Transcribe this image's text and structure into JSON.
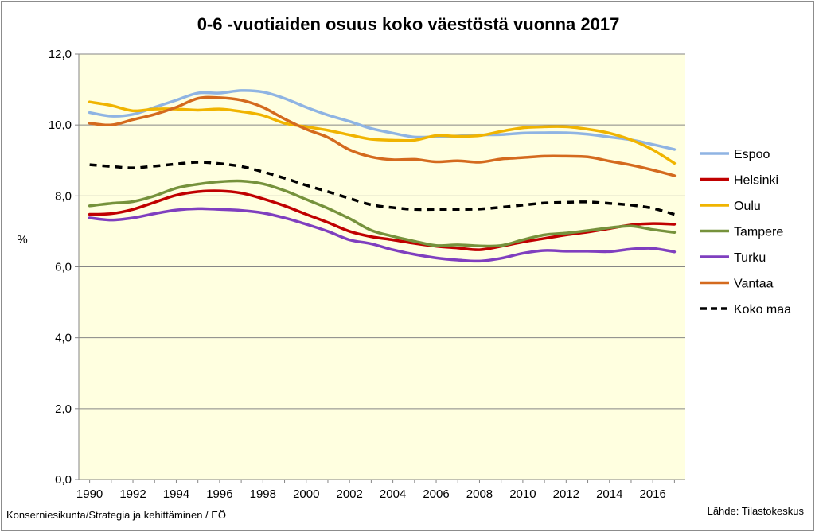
{
  "chart_data": {
    "type": "line",
    "title": "0-6 -vuotiaiden osuus koko väestöstä vuonna  2017",
    "ylabel": "%",
    "xlabel": "",
    "ylim": [
      0,
      12
    ],
    "y_ticks": [
      "0,0",
      "2,0",
      "4,0",
      "6,0",
      "8,0",
      "10,0",
      "12,0"
    ],
    "x": [
      1990,
      1991,
      1992,
      1993,
      1994,
      1995,
      1996,
      1997,
      1998,
      1999,
      2000,
      2001,
      2002,
      2003,
      2004,
      2005,
      2006,
      2007,
      2008,
      2009,
      2010,
      2011,
      2012,
      2013,
      2014,
      2015,
      2016,
      2017
    ],
    "x_tick_labels": [
      "1990",
      "1992",
      "1994",
      "1996",
      "1998",
      "2000",
      "2002",
      "2004",
      "2006",
      "2008",
      "2010",
      "2012",
      "2014",
      "2016"
    ],
    "plot_background": "#ffffe0",
    "grid": "horizontal",
    "legend_position": "right",
    "series": [
      {
        "name": "Espoo",
        "color": "#8fb4e3",
        "dash": "solid",
        "values": [
          10.35,
          10.25,
          10.3,
          10.5,
          10.7,
          10.9,
          10.9,
          10.97,
          10.93,
          10.75,
          10.5,
          10.28,
          10.1,
          9.9,
          9.77,
          9.66,
          9.67,
          9.69,
          9.72,
          9.73,
          9.77,
          9.78,
          9.78,
          9.74,
          9.66,
          9.58,
          9.45,
          9.31
        ]
      },
      {
        "name": "Helsinki",
        "color": "#c00000",
        "dash": "solid",
        "values": [
          7.48,
          7.5,
          7.62,
          7.82,
          8.02,
          8.12,
          8.14,
          8.08,
          7.92,
          7.72,
          7.48,
          7.25,
          7.0,
          6.85,
          6.76,
          6.66,
          6.58,
          6.53,
          6.48,
          6.58,
          6.7,
          6.8,
          6.9,
          6.98,
          7.08,
          7.18,
          7.22,
          7.2
        ]
      },
      {
        "name": "Oulu",
        "color": "#f0b400",
        "dash": "solid",
        "values": [
          10.65,
          10.55,
          10.4,
          10.45,
          10.45,
          10.42,
          10.45,
          10.38,
          10.27,
          10.05,
          9.95,
          9.85,
          9.72,
          9.6,
          9.57,
          9.57,
          9.7,
          9.68,
          9.7,
          9.82,
          9.92,
          9.95,
          9.95,
          9.88,
          9.77,
          9.58,
          9.3,
          8.92
        ]
      },
      {
        "name": "Tampere",
        "color": "#76923c",
        "dash": "solid",
        "values": [
          7.72,
          7.79,
          7.84,
          8.0,
          8.22,
          8.33,
          8.4,
          8.42,
          8.34,
          8.15,
          7.9,
          7.65,
          7.36,
          7.03,
          6.86,
          6.72,
          6.6,
          6.62,
          6.59,
          6.6,
          6.76,
          6.9,
          6.95,
          7.02,
          7.1,
          7.15,
          7.05,
          6.97
        ]
      },
      {
        "name": "Turku",
        "color": "#7f3fbf",
        "dash": "solid",
        "values": [
          7.38,
          7.32,
          7.38,
          7.5,
          7.6,
          7.64,
          7.62,
          7.59,
          7.52,
          7.38,
          7.2,
          7.0,
          6.76,
          6.65,
          6.48,
          6.35,
          6.25,
          6.19,
          6.16,
          6.24,
          6.38,
          6.46,
          6.44,
          6.44,
          6.43,
          6.5,
          6.52,
          6.42
        ]
      },
      {
        "name": "Vantaa",
        "color": "#d46a1e",
        "dash": "solid",
        "values": [
          10.05,
          10.0,
          10.15,
          10.3,
          10.5,
          10.75,
          10.77,
          10.7,
          10.5,
          10.17,
          9.88,
          9.65,
          9.3,
          9.1,
          9.02,
          9.03,
          8.96,
          8.99,
          8.95,
          9.04,
          9.08,
          9.12,
          9.12,
          9.1,
          8.98,
          8.87,
          8.73,
          8.57
        ]
      },
      {
        "name": "Koko maa",
        "color": "#000000",
        "dash": "dashed",
        "values": [
          8.88,
          8.83,
          8.79,
          8.84,
          8.9,
          8.95,
          8.91,
          8.83,
          8.68,
          8.5,
          8.3,
          8.12,
          7.93,
          7.75,
          7.67,
          7.62,
          7.62,
          7.62,
          7.63,
          7.68,
          7.74,
          7.8,
          7.82,
          7.83,
          7.79,
          7.74,
          7.65,
          7.48
        ]
      }
    ],
    "footer_left": "Konserniesikunta/Strategia ja kehittäminen  / EÖ",
    "footer_right": "Lähde: Tilastokeskus"
  }
}
